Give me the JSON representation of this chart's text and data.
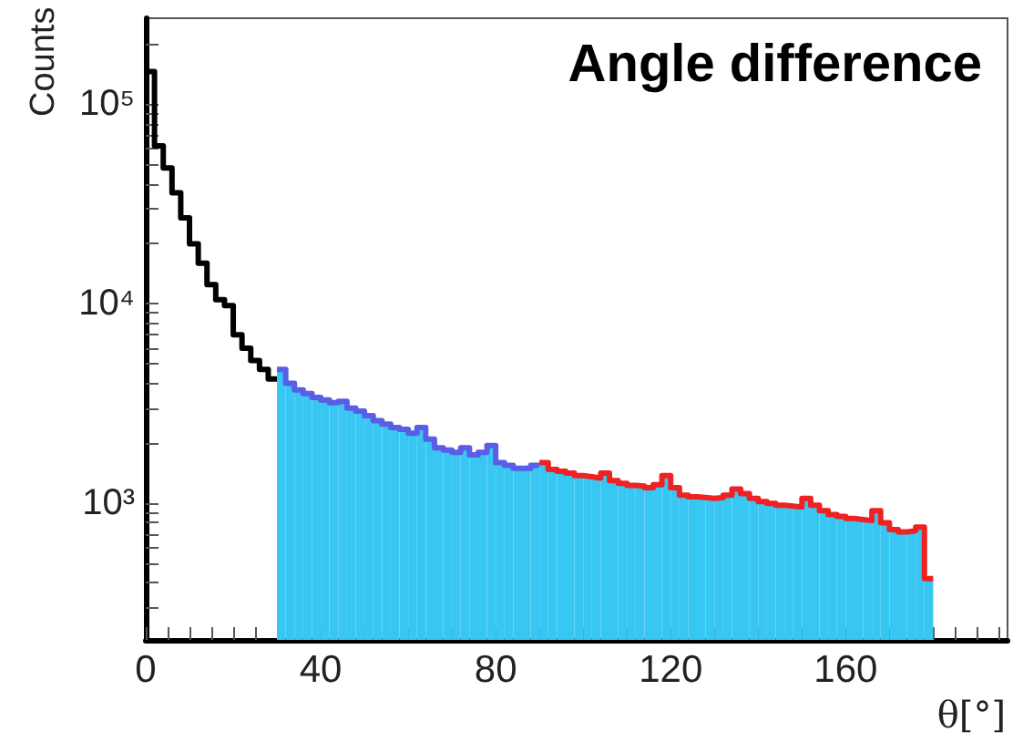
{
  "chart_data": {
    "type": "histogram",
    "title": "Angle difference",
    "xlabel": "θ[°]",
    "ylabel": "Counts",
    "log": "y",
    "grid": false,
    "legend": false,
    "xlim": [
      0,
      197
    ],
    "xticks": [
      0,
      {
        "value": 5,
        "label": null
      },
      {
        "value": 10,
        "label": null
      },
      {
        "value": 15,
        "label": null
      },
      {
        "value": 20,
        "label": null
      },
      {
        "value": 25,
        "label": null
      },
      {
        "value": 30,
        "label": null
      },
      {
        "value": 35,
        "label": null
      },
      40,
      {
        "value": 45,
        "label": null
      },
      {
        "value": 50,
        "label": null
      },
      {
        "value": 55,
        "label": null
      },
      {
        "value": 60,
        "label": null
      },
      {
        "value": 65,
        "label": null
      },
      {
        "value": 70,
        "label": null
      },
      {
        "value": 75,
        "label": null
      },
      80,
      {
        "value": 85,
        "label": null
      },
      {
        "value": 90,
        "label": null
      },
      {
        "value": 95,
        "label": null
      },
      {
        "value": 100,
        "label": null
      },
      {
        "value": 105,
        "label": null
      },
      {
        "value": 110,
        "label": null
      },
      {
        "value": 115,
        "label": null
      },
      120,
      {
        "value": 125,
        "label": null
      },
      {
        "value": 130,
        "label": null
      },
      {
        "value": 135,
        "label": null
      },
      {
        "value": 140,
        "label": null
      },
      {
        "value": 145,
        "label": null
      },
      {
        "value": 150,
        "label": null
      },
      {
        "value": 155,
        "label": null
      },
      160,
      {
        "value": 165,
        "label": null
      },
      {
        "value": 170,
        "label": null
      },
      {
        "value": 175,
        "label": null
      },
      {
        "value": 180,
        "label": null
      },
      {
        "value": 185,
        "label": null
      },
      {
        "value": 190,
        "label": null
      },
      {
        "value": 195,
        "label": null
      }
    ],
    "ylim": [
      207,
      270000
    ],
    "yticks": [
      {
        "value": 300,
        "label": null
      },
      {
        "value": 400,
        "label": null
      },
      {
        "value": 500,
        "label": null
      },
      {
        "value": 600,
        "label": null
      },
      {
        "value": 700,
        "label": null
      },
      {
        "value": 800,
        "label": null
      },
      {
        "value": 900,
        "label": null
      },
      {
        "value": 1000,
        "label": "10³"
      },
      {
        "value": 2000,
        "label": null
      },
      {
        "value": 3000,
        "label": null
      },
      {
        "value": 4000,
        "label": null
      },
      {
        "value": 5000,
        "label": null
      },
      {
        "value": 6000,
        "label": null
      },
      {
        "value": 7000,
        "label": null
      },
      {
        "value": 8000,
        "label": null
      },
      {
        "value": 9000,
        "label": null
      },
      {
        "value": 10000,
        "label": "10⁴"
      },
      {
        "value": 20000,
        "label": null
      },
      {
        "value": 30000,
        "label": null
      },
      {
        "value": 40000,
        "label": null
      },
      {
        "value": 50000,
        "label": null
      },
      {
        "value": 60000,
        "label": null
      },
      {
        "value": 70000,
        "label": null
      },
      {
        "value": 80000,
        "label": null
      },
      {
        "value": 90000,
        "label": null
      },
      {
        "value": 100000,
        "label": "10⁵"
      },
      {
        "value": 200000,
        "label": null
      }
    ],
    "series": [
      {
        "type": "step",
        "color": "#000000",
        "x": [
          0,
          2,
          4,
          6,
          8,
          10,
          12,
          14,
          16,
          18,
          20,
          22,
          24,
          26,
          28,
          30
        ],
        "values": [
          146000,
          62000,
          48000,
          36000,
          27000,
          20000,
          16000,
          12500,
          10500,
          9800,
          7000,
          6000,
          5200,
          4700,
          4200,
          4200
        ]
      },
      {
        "type": "step",
        "color": "#5a5ee6",
        "x": [
          30,
          32,
          34,
          36,
          38,
          40,
          42,
          44,
          46,
          48,
          50,
          52,
          54,
          56,
          58,
          60,
          62,
          64,
          66,
          68,
          70,
          72,
          74,
          76,
          78,
          80,
          82,
          84,
          86,
          88,
          90
        ],
        "values": [
          4700,
          4000,
          3700,
          3550,
          3400,
          3300,
          3200,
          3250,
          3000,
          2900,
          2750,
          2600,
          2500,
          2400,
          2350,
          2250,
          2400,
          2100,
          1900,
          1850,
          1800,
          1900,
          1750,
          1800,
          1950,
          1600,
          1550,
          1500,
          1500,
          1550,
          1550
        ]
      },
      {
        "type": "step",
        "color": "#ee2222",
        "x": [
          90,
          92,
          94,
          96,
          98,
          100,
          102,
          104,
          106,
          108,
          110,
          112,
          114,
          116,
          118,
          120,
          122,
          124,
          126,
          128,
          130,
          132,
          134,
          136,
          138,
          140,
          142,
          144,
          146,
          148,
          150,
          152,
          154,
          156,
          158,
          160,
          162,
          164,
          166,
          168,
          170,
          172,
          174,
          176,
          178,
          180
        ],
        "values": [
          1600,
          1480,
          1450,
          1420,
          1380,
          1360,
          1340,
          1420,
          1300,
          1260,
          1230,
          1220,
          1200,
          1240,
          1380,
          1200,
          1100,
          1080,
          1070,
          1060,
          1070,
          1100,
          1180,
          1120,
          1060,
          1020,
          1000,
          980,
          970,
          960,
          1060,
          980,
          920,
          880,
          860,
          840,
          830,
          820,
          920,
          800,
          740,
          720,
          730,
          760,
          420,
          420
        ]
      },
      {
        "color": "#38c6f2",
        "bins": [
          30,
          32,
          34,
          36,
          38,
          40,
          42,
          44,
          46,
          48,
          50,
          52,
          54,
          56,
          58,
          60,
          62,
          64,
          66,
          68,
          70,
          72,
          74,
          76,
          78,
          80,
          82,
          84,
          86,
          88,
          90
        ],
        "values": [
          4700,
          4000,
          3700,
          3550,
          3400,
          3300,
          3200,
          3250,
          3000,
          2900,
          2750,
          2600,
          2500,
          2400,
          2350,
          2250,
          2400,
          2100,
          1900,
          1850,
          1800,
          1900,
          1750,
          1800,
          1950,
          1600,
          1550,
          1500,
          1500,
          1550
        ]
      },
      {
        "color": "#38c6f2",
        "bins": [
          90,
          92,
          94,
          96,
          98,
          100,
          102,
          104,
          106,
          108,
          110,
          112,
          114,
          116,
          118,
          120,
          122,
          124,
          126,
          128,
          130,
          132,
          134,
          136,
          138,
          140,
          142,
          144,
          146,
          148,
          150,
          152,
          154,
          156,
          158,
          160,
          162,
          164,
          166,
          168,
          170,
          172,
          174,
          176,
          178,
          180
        ],
        "values": [
          1600,
          1480,
          1450,
          1420,
          1380,
          1360,
          1340,
          1420,
          1300,
          1260,
          1230,
          1220,
          1200,
          1240,
          1380,
          1200,
          1100,
          1080,
          1070,
          1060,
          1070,
          1100,
          1180,
          1120,
          1060,
          1020,
          1000,
          980,
          970,
          960,
          1060,
          980,
          920,
          880,
          860,
          840,
          830,
          820,
          920,
          800,
          740,
          720,
          730,
          760,
          420
        ]
      }
    ]
  }
}
